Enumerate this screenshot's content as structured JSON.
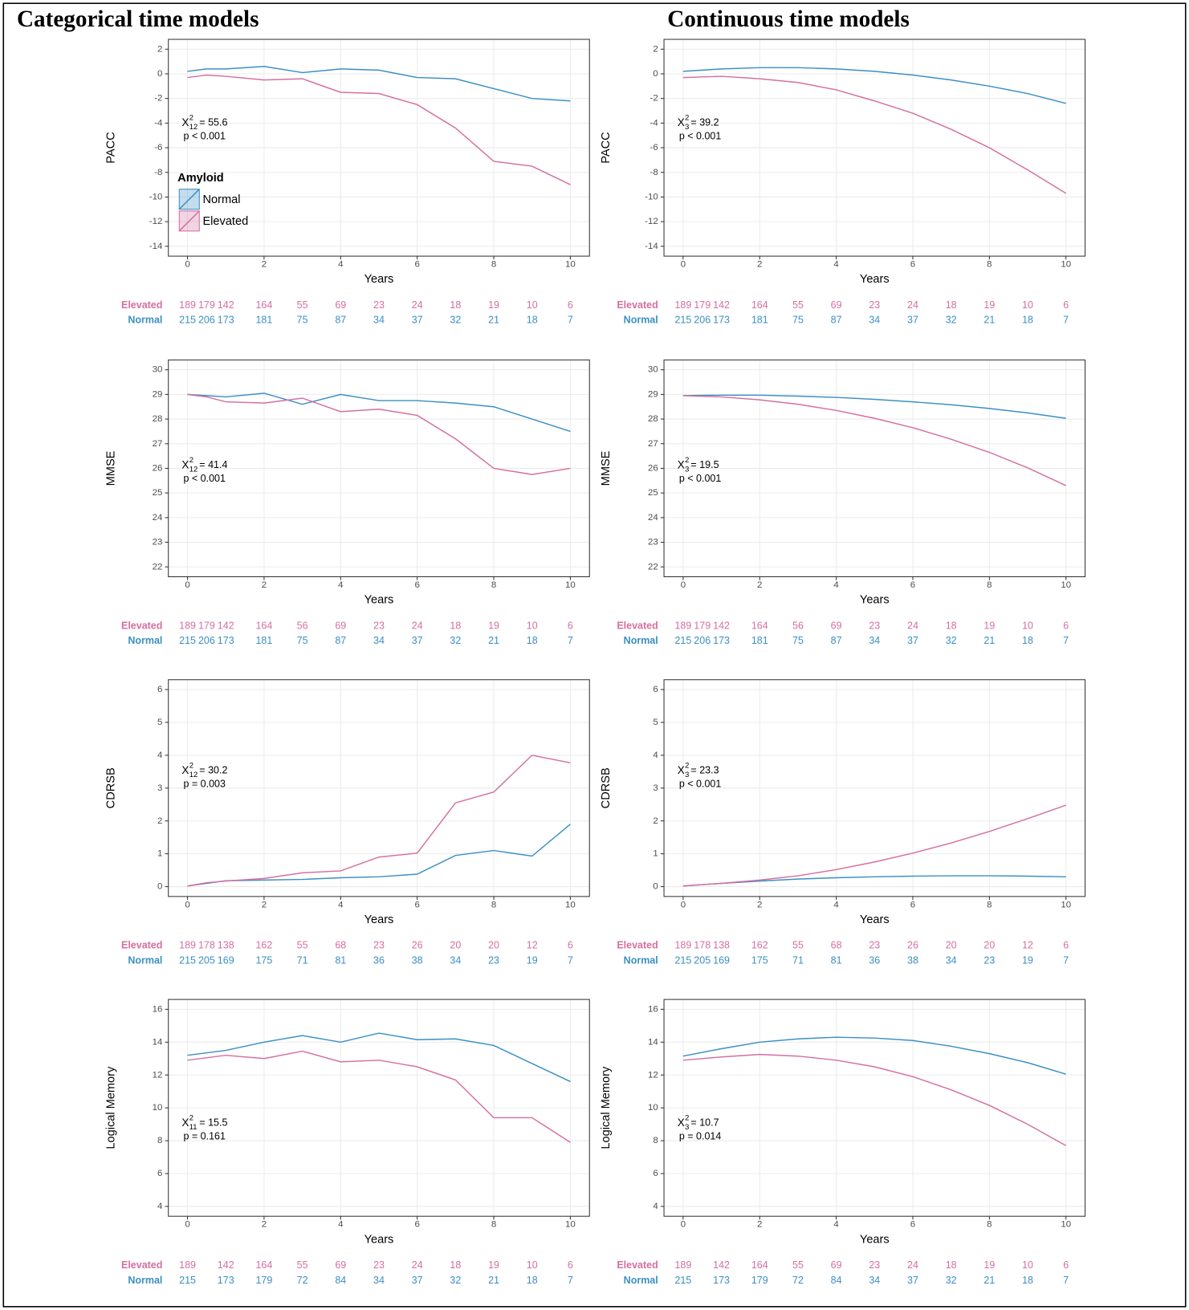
{
  "column_titles": [
    "Categorical time models",
    "Continuous time models"
  ],
  "chart_data": [
    {
      "type": "line",
      "ylabel": "PACC",
      "xlabel": "Years",
      "x": [
        0,
        0.5,
        1,
        2,
        3,
        4,
        5,
        6,
        7,
        8,
        9,
        10
      ],
      "xlim": [
        -0.5,
        10.5
      ],
      "xticks": [
        0,
        2,
        4,
        6,
        8,
        10
      ],
      "ylim": [
        -14.8,
        2.8
      ],
      "yticks": [
        -14,
        -12,
        -10,
        -8,
        -6,
        -4,
        -2,
        0,
        2
      ],
      "grid": true,
      "legend": {
        "title": "Amyloid",
        "position": "left"
      },
      "stat": {
        "symbol": "X",
        "sup": "2",
        "sub": "12",
        "text": "= 55.6"
      },
      "p": "p < 0.001",
      "at_risk_x": [
        0,
        0.5,
        1,
        2,
        3,
        4,
        5,
        6,
        7,
        8,
        9,
        10
      ],
      "series": [
        {
          "name": "Normal",
          "color": "#3b8fc4",
          "values": [
            0.2,
            0.4,
            0.4,
            0.6,
            0.1,
            0.4,
            0.3,
            -0.3,
            -0.4,
            -1.2,
            -2.0,
            -2.2
          ],
          "at_risk": [
            215,
            206,
            173,
            181,
            75,
            87,
            34,
            37,
            32,
            21,
            18,
            7
          ]
        },
        {
          "name": "Elevated",
          "color": "#d56fa0",
          "values": [
            -0.3,
            -0.1,
            -0.2,
            -0.5,
            -0.4,
            -1.5,
            -1.6,
            -2.5,
            -4.4,
            -7.1,
            -7.5,
            -9.0
          ],
          "at_risk": [
            189,
            179,
            142,
            164,
            55,
            69,
            23,
            24,
            18,
            19,
            10,
            6
          ]
        }
      ]
    },
    {
      "type": "line",
      "ylabel": "PACC",
      "xlabel": "Years",
      "x": [
        0,
        1,
        2,
        3,
        4,
        5,
        6,
        7,
        8,
        9,
        10
      ],
      "xlim": [
        -0.5,
        10.5
      ],
      "xticks": [
        0,
        2,
        4,
        6,
        8,
        10
      ],
      "ylim": [
        -14.8,
        2.8
      ],
      "yticks": [
        -14,
        -12,
        -10,
        -8,
        -6,
        -4,
        -2,
        0,
        2
      ],
      "grid": true,
      "stat": {
        "symbol": "X",
        "sup": "2",
        "sub": "3",
        "text": "= 39.2"
      },
      "p": "p < 0.001",
      "at_risk_x": [
        0,
        0.5,
        1,
        2,
        3,
        4,
        5,
        6,
        7,
        8,
        9,
        10
      ],
      "series": [
        {
          "name": "Normal",
          "color": "#3b8fc4",
          "values": [
            0.2,
            0.4,
            0.5,
            0.5,
            0.4,
            0.2,
            -0.1,
            -0.5,
            -1.0,
            -1.6,
            -2.4
          ],
          "at_risk": [
            215,
            206,
            173,
            181,
            75,
            87,
            34,
            37,
            32,
            21,
            18,
            7
          ]
        },
        {
          "name": "Elevated",
          "color": "#d56fa0",
          "values": [
            -0.3,
            -0.2,
            -0.4,
            -0.7,
            -1.3,
            -2.2,
            -3.2,
            -4.5,
            -6.0,
            -7.8,
            -9.7
          ],
          "at_risk": [
            189,
            179,
            142,
            164,
            55,
            69,
            23,
            24,
            18,
            19,
            10,
            6
          ]
        }
      ]
    },
    {
      "type": "line",
      "ylabel": "MMSE",
      "xlabel": "Years",
      "x": [
        0,
        0.5,
        1,
        2,
        3,
        4,
        5,
        6,
        7,
        8,
        9,
        10
      ],
      "xlim": [
        -0.5,
        10.5
      ],
      "xticks": [
        0,
        2,
        4,
        6,
        8,
        10
      ],
      "ylim": [
        21.6,
        30.4
      ],
      "yticks": [
        22,
        23,
        24,
        25,
        26,
        27,
        28,
        29,
        30
      ],
      "grid": true,
      "stat": {
        "symbol": "X",
        "sup": "2",
        "sub": "12",
        "text": "= 41.4"
      },
      "p": "p < 0.001",
      "at_risk_x": [
        0,
        0.5,
        1,
        2,
        3,
        4,
        5,
        6,
        7,
        8,
        9,
        10
      ],
      "series": [
        {
          "name": "Normal",
          "color": "#3b8fc4",
          "values": [
            29.0,
            28.95,
            28.9,
            29.05,
            28.6,
            29.0,
            28.75,
            28.75,
            28.65,
            28.5,
            28.0,
            27.5
          ],
          "at_risk": [
            215,
            206,
            173,
            181,
            75,
            87,
            34,
            37,
            32,
            21,
            18,
            7
          ]
        },
        {
          "name": "Elevated",
          "color": "#d56fa0",
          "values": [
            29.0,
            28.9,
            28.7,
            28.65,
            28.85,
            28.3,
            28.4,
            28.15,
            27.2,
            26.0,
            25.75,
            26.0
          ],
          "at_risk": [
            189,
            179,
            142,
            164,
            56,
            69,
            23,
            24,
            18,
            19,
            10,
            6
          ]
        }
      ]
    },
    {
      "type": "line",
      "ylabel": "MMSE",
      "xlabel": "Years",
      "x": [
        0,
        1,
        2,
        3,
        4,
        5,
        6,
        7,
        8,
        9,
        10
      ],
      "xlim": [
        -0.5,
        10.5
      ],
      "xticks": [
        0,
        2,
        4,
        6,
        8,
        10
      ],
      "ylim": [
        21.6,
        30.4
      ],
      "yticks": [
        22,
        23,
        24,
        25,
        26,
        27,
        28,
        29,
        30
      ],
      "grid": true,
      "stat": {
        "symbol": "X",
        "sup": "2",
        "sub": "3",
        "text": "= 19.5"
      },
      "p": "p < 0.001",
      "at_risk_x": [
        0,
        0.5,
        1,
        2,
        3,
        4,
        5,
        6,
        7,
        8,
        9,
        10
      ],
      "series": [
        {
          "name": "Normal",
          "color": "#3b8fc4",
          "values": [
            28.95,
            28.97,
            28.97,
            28.93,
            28.88,
            28.8,
            28.7,
            28.58,
            28.43,
            28.25,
            28.03
          ],
          "at_risk": [
            215,
            206,
            173,
            181,
            75,
            87,
            34,
            37,
            32,
            21,
            18,
            7
          ]
        },
        {
          "name": "Elevated",
          "color": "#d56fa0",
          "values": [
            28.95,
            28.9,
            28.78,
            28.6,
            28.35,
            28.03,
            27.65,
            27.18,
            26.65,
            26.02,
            25.3
          ],
          "at_risk": [
            189,
            179,
            142,
            164,
            56,
            69,
            23,
            24,
            18,
            19,
            10,
            6
          ]
        }
      ]
    },
    {
      "type": "line",
      "ylabel": "CDRSB",
      "xlabel": "Years",
      "x": [
        0,
        0.5,
        1,
        2,
        3,
        4,
        5,
        6,
        7,
        8,
        9,
        10
      ],
      "xlim": [
        -0.5,
        10.5
      ],
      "xticks": [
        0,
        2,
        4,
        6,
        8,
        10
      ],
      "ylim": [
        -0.3,
        6.3
      ],
      "yticks": [
        0,
        1,
        2,
        3,
        4,
        5,
        6
      ],
      "grid": true,
      "stat": {
        "symbol": "X",
        "sup": "2",
        "sub": "12",
        "text": "= 30.2"
      },
      "p": "p = 0.003",
      "at_risk_x": [
        0,
        0.5,
        1,
        2,
        3,
        4,
        5,
        6,
        7,
        8,
        9,
        10
      ],
      "series": [
        {
          "name": "Normal",
          "color": "#3b8fc4",
          "values": [
            0.02,
            0.1,
            0.18,
            0.2,
            0.22,
            0.27,
            0.3,
            0.38,
            0.95,
            1.1,
            0.93,
            1.9
          ],
          "at_risk": [
            215,
            205,
            169,
            175,
            71,
            81,
            36,
            38,
            34,
            23,
            19,
            7
          ]
        },
        {
          "name": "Elevated",
          "color": "#d56fa0",
          "values": [
            0.02,
            0.12,
            0.17,
            0.25,
            0.42,
            0.48,
            0.9,
            1.02,
            2.55,
            2.88,
            4.0,
            3.77
          ],
          "at_risk": [
            189,
            178,
            138,
            162,
            55,
            68,
            23,
            26,
            20,
            20,
            12,
            6
          ]
        }
      ]
    },
    {
      "type": "line",
      "ylabel": "CDRSB",
      "xlabel": "Years",
      "x": [
        0,
        1,
        2,
        3,
        4,
        5,
        6,
        7,
        8,
        9,
        10
      ],
      "xlim": [
        -0.5,
        10.5
      ],
      "xticks": [
        0,
        2,
        4,
        6,
        8,
        10
      ],
      "ylim": [
        -0.3,
        6.3
      ],
      "yticks": [
        0,
        1,
        2,
        3,
        4,
        5,
        6
      ],
      "grid": true,
      "stat": {
        "symbol": "X",
        "sup": "2",
        "sub": "3",
        "text": "= 23.3"
      },
      "p": "p < 0.001",
      "at_risk_x": [
        0,
        0.5,
        1,
        2,
        3,
        4,
        5,
        6,
        7,
        8,
        9,
        10
      ],
      "series": [
        {
          "name": "Normal",
          "color": "#3b8fc4",
          "values": [
            0.02,
            0.1,
            0.17,
            0.23,
            0.27,
            0.3,
            0.32,
            0.33,
            0.33,
            0.32,
            0.3
          ],
          "at_risk": [
            215,
            205,
            169,
            175,
            71,
            81,
            36,
            38,
            34,
            23,
            19,
            7
          ]
        },
        {
          "name": "Elevated",
          "color": "#d56fa0",
          "values": [
            0.02,
            0.1,
            0.2,
            0.33,
            0.52,
            0.75,
            1.02,
            1.33,
            1.68,
            2.07,
            2.48
          ],
          "at_risk": [
            189,
            178,
            138,
            162,
            55,
            68,
            23,
            26,
            20,
            20,
            12,
            6
          ]
        }
      ]
    },
    {
      "type": "line",
      "ylabel": "Logical Memory",
      "xlabel": "Years",
      "x": [
        0,
        1,
        2,
        3,
        4,
        5,
        6,
        7,
        8,
        9,
        10
      ],
      "xlim": [
        -0.5,
        10.5
      ],
      "xticks": [
        0,
        2,
        4,
        6,
        8,
        10
      ],
      "ylim": [
        3.4,
        16.6
      ],
      "yticks": [
        4,
        6,
        8,
        10,
        12,
        14,
        16
      ],
      "grid": true,
      "stat": {
        "symbol": "X",
        "sup": "2",
        "sub": "11",
        "text": "= 15.5"
      },
      "p": "p = 0.161",
      "at_risk_x": [
        0,
        1,
        2,
        3,
        4,
        5,
        6,
        7,
        8,
        9,
        10
      ],
      "series": [
        {
          "name": "Normal",
          "color": "#3b8fc4",
          "values": [
            13.2,
            13.5,
            14.0,
            14.4,
            14.0,
            14.55,
            14.15,
            14.2,
            13.8,
            12.7,
            11.6
          ],
          "at_risk": [
            215,
            173,
            179,
            72,
            84,
            34,
            37,
            32,
            21,
            18,
            7
          ]
        },
        {
          "name": "Elevated",
          "color": "#d56fa0",
          "values": [
            12.9,
            13.2,
            13.0,
            13.45,
            12.8,
            12.9,
            12.5,
            11.7,
            9.4,
            9.4,
            7.9
          ],
          "at_risk": [
            189,
            142,
            164,
            55,
            69,
            23,
            24,
            18,
            19,
            10,
            6
          ]
        }
      ]
    },
    {
      "type": "line",
      "ylabel": "Logical Memory",
      "xlabel": "Years",
      "x": [
        0,
        1,
        2,
        3,
        4,
        5,
        6,
        7,
        8,
        9,
        10
      ],
      "xlim": [
        -0.5,
        10.5
      ],
      "xticks": [
        0,
        2,
        4,
        6,
        8,
        10
      ],
      "ylim": [
        3.4,
        16.6
      ],
      "yticks": [
        4,
        6,
        8,
        10,
        12,
        14,
        16
      ],
      "grid": true,
      "stat": {
        "symbol": "X",
        "sup": "2",
        "sub": "3",
        "text": "= 10.7"
      },
      "p": "p = 0.014",
      "at_risk_x": [
        0,
        1,
        2,
        3,
        4,
        5,
        6,
        7,
        8,
        9,
        10
      ],
      "series": [
        {
          "name": "Normal",
          "color": "#3b8fc4",
          "values": [
            13.15,
            13.6,
            14.0,
            14.2,
            14.3,
            14.25,
            14.1,
            13.75,
            13.3,
            12.75,
            12.05
          ],
          "at_risk": [
            215,
            173,
            179,
            72,
            84,
            34,
            37,
            32,
            21,
            18,
            7
          ]
        },
        {
          "name": "Elevated",
          "color": "#d56fa0",
          "values": [
            12.9,
            13.1,
            13.25,
            13.15,
            12.9,
            12.5,
            11.9,
            11.1,
            10.15,
            9.0,
            7.7
          ],
          "at_risk": [
            189,
            142,
            164,
            55,
            69,
            23,
            24,
            18,
            19,
            10,
            6
          ]
        }
      ]
    }
  ]
}
